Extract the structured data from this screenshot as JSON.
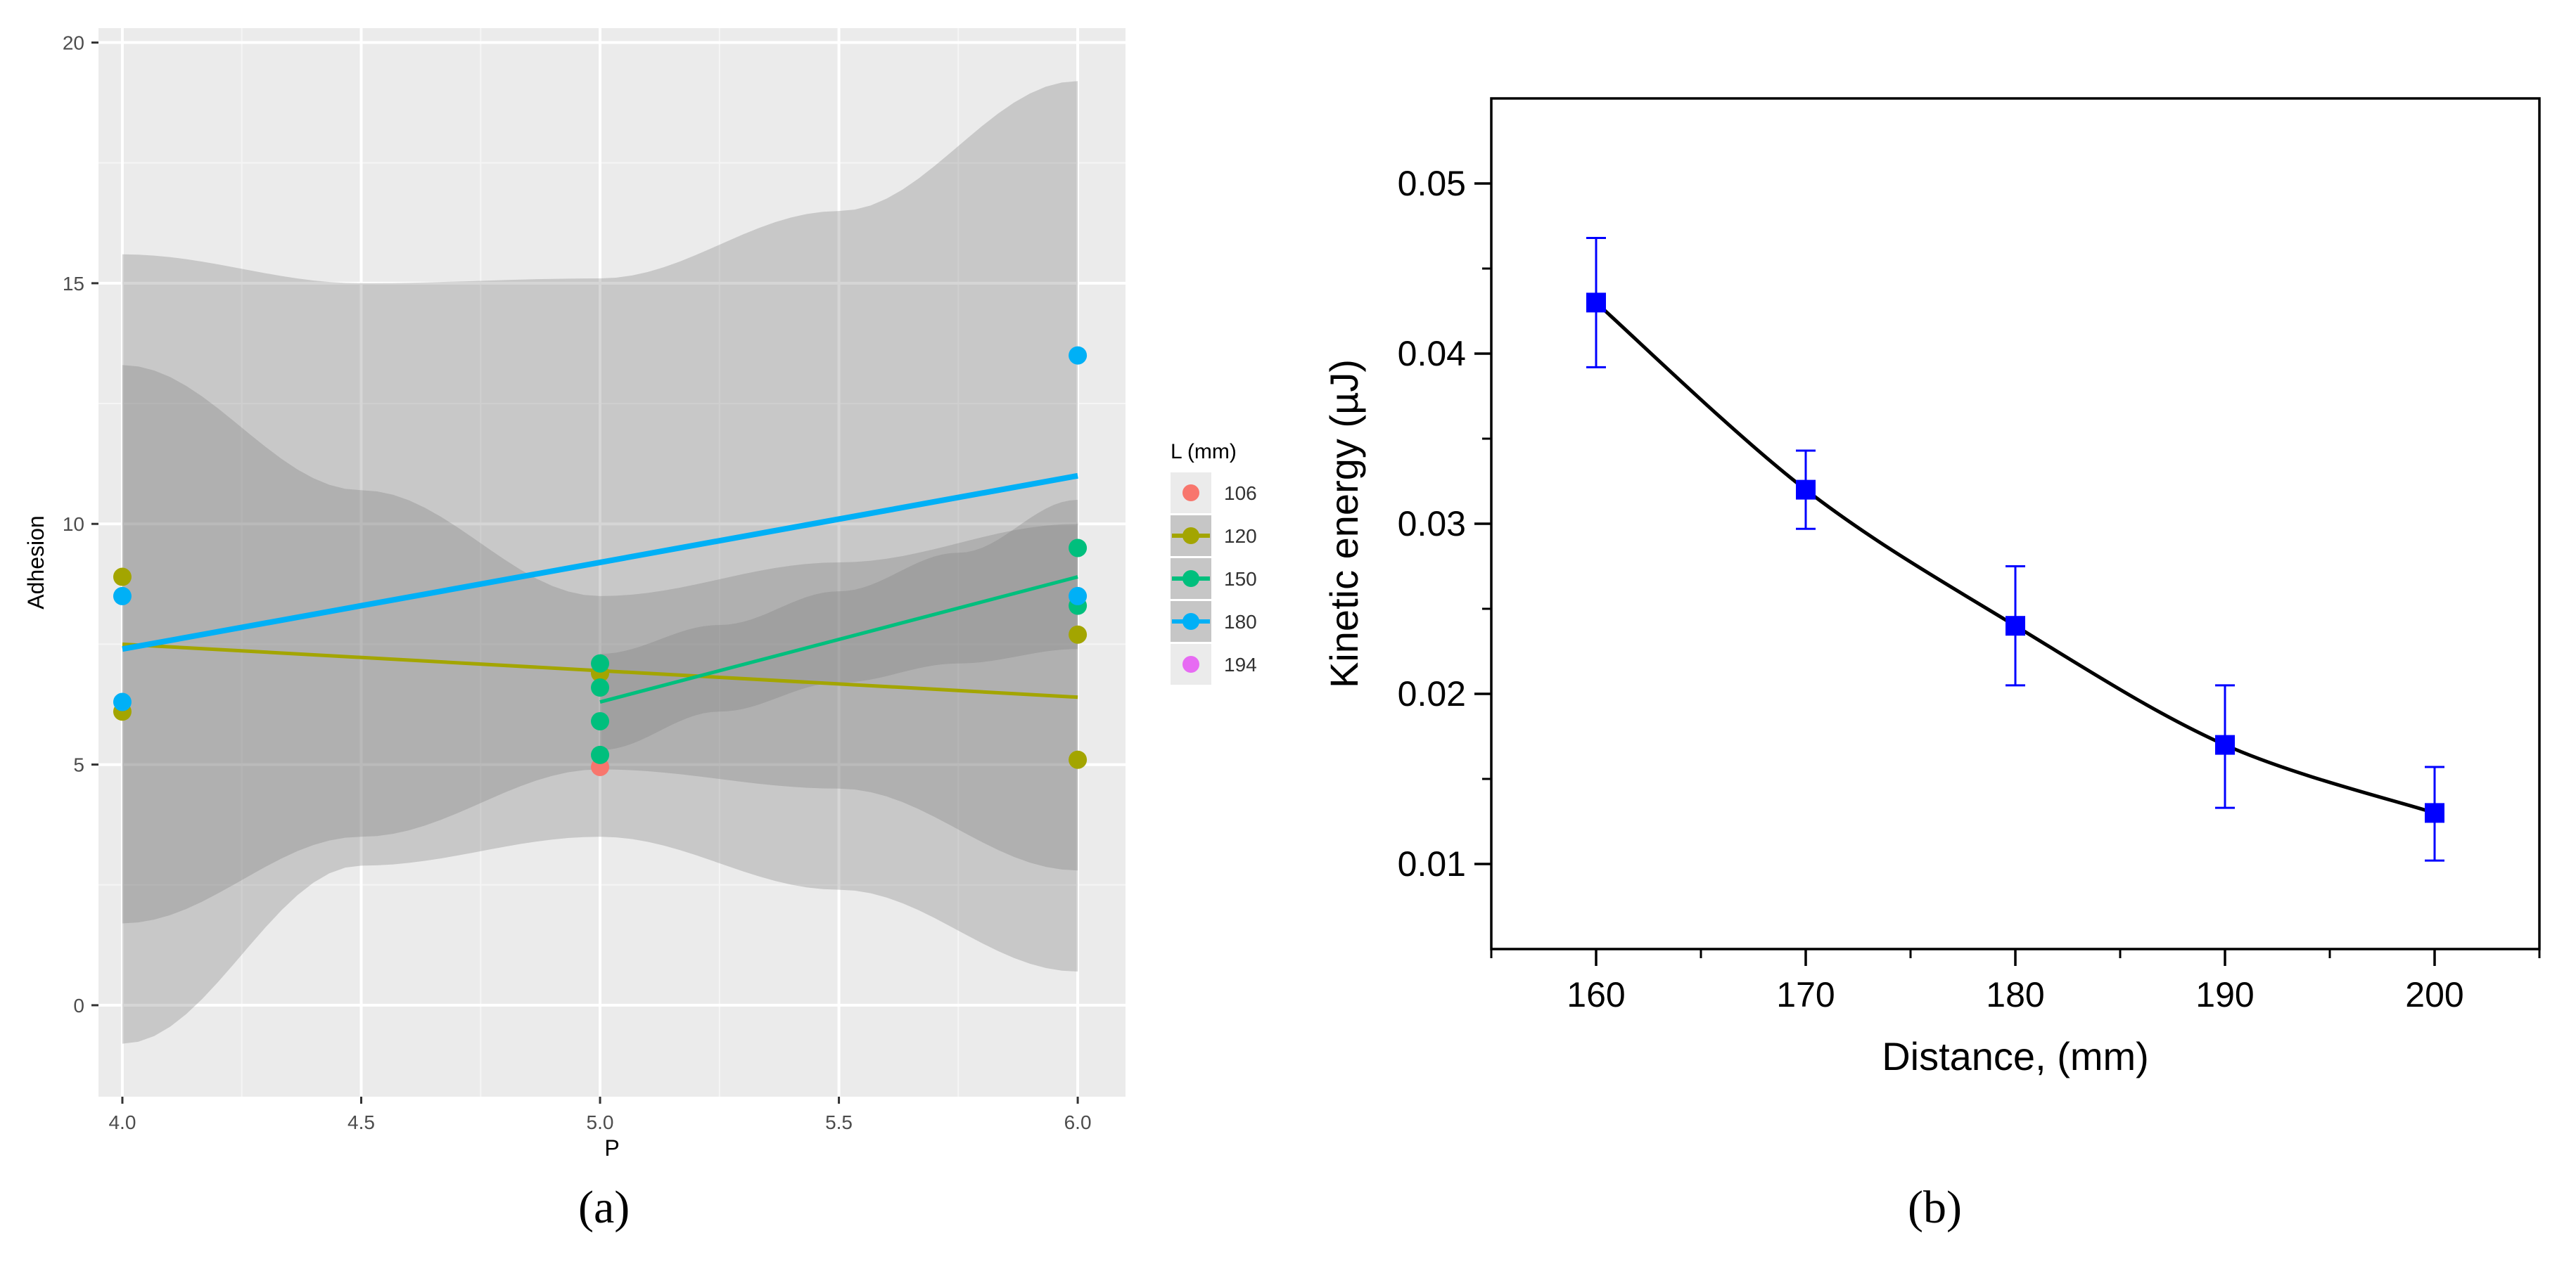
{
  "figure": {
    "panel_a_label": "(a)",
    "panel_b_label": "(b)"
  },
  "chart_data": [
    {
      "type": "scatter",
      "panel": "a",
      "xlabel": "P",
      "ylabel": "Adhesion",
      "xlim": [
        3.95,
        6.1
      ],
      "ylim": [
        -1.9,
        20.3
      ],
      "xticks": [
        4.0,
        4.5,
        5.0,
        5.5,
        6.0
      ],
      "xtick_labels": [
        "4.0",
        "4.5",
        "5.0",
        "5.5",
        "6.0"
      ],
      "yticks": [
        0,
        5,
        10,
        15,
        20
      ],
      "ytick_labels": [
        "0",
        "5",
        "10",
        "15",
        "20"
      ],
      "grid": true,
      "background": "#ebebeb",
      "legend": {
        "title": "L (mm)",
        "placement": "right",
        "entries": [
          "106",
          "120",
          "150",
          "180",
          "194"
        ]
      },
      "series": [
        {
          "name": "106",
          "color": "#f8766d",
          "points": [
            [
              5.0,
              4.95
            ]
          ]
        },
        {
          "name": "120",
          "color": "#a3a500",
          "points": [
            [
              4.0,
              8.9
            ],
            [
              4.0,
              6.1
            ],
            [
              5.0,
              6.9
            ],
            [
              6.0,
              7.7
            ],
            [
              6.0,
              5.1
            ]
          ],
          "fit": [
            [
              4.0,
              7.5
            ],
            [
              6.0,
              6.4
            ]
          ],
          "band": {
            "x": [
              4.0,
              4.5,
              5.0,
              5.5,
              6.0
            ],
            "lower": [
              1.7,
              3.5,
              4.9,
              4.5,
              2.8
            ],
            "upper": [
              13.3,
              10.7,
              8.5,
              9.2,
              10.0
            ]
          }
        },
        {
          "name": "150",
          "color": "#00bf7d",
          "points": [
            [
              5.0,
              7.1
            ],
            [
              5.0,
              6.6
            ],
            [
              5.0,
              5.9
            ],
            [
              5.0,
              5.2
            ],
            [
              6.0,
              9.5
            ],
            [
              6.0,
              8.3
            ]
          ],
          "fit": [
            [
              5.0,
              6.3
            ],
            [
              6.0,
              8.9
            ]
          ],
          "band": {
            "x": [
              5.0,
              5.25,
              5.5,
              5.75,
              6.0
            ],
            "lower": [
              5.3,
              6.1,
              6.7,
              7.1,
              7.4
            ],
            "upper": [
              7.3,
              7.9,
              8.6,
              9.4,
              10.5
            ]
          }
        },
        {
          "name": "180",
          "color": "#00b0f6",
          "points": [
            [
              4.0,
              8.5
            ],
            [
              4.0,
              6.3
            ],
            [
              6.0,
              13.5
            ],
            [
              6.0,
              8.5
            ]
          ],
          "fit": [
            [
              4.0,
              7.4
            ],
            [
              6.0,
              11.0
            ]
          ],
          "band": {
            "x": [
              4.0,
              4.5,
              5.0,
              5.5,
              6.0
            ],
            "lower": [
              -0.8,
              2.9,
              3.5,
              2.4,
              0.7
            ],
            "upper": [
              15.6,
              15.0,
              15.1,
              16.5,
              19.2
            ]
          }
        },
        {
          "name": "194",
          "color": "#e76bf3",
          "points": []
        }
      ]
    },
    {
      "type": "line",
      "panel": "b",
      "xlabel": "Distance, (mm)",
      "ylabel": "Kinetic energy (µJ)",
      "xlim": [
        155,
        205
      ],
      "ylim": [
        0.005,
        0.055
      ],
      "xticks": [
        160,
        170,
        180,
        190,
        200
      ],
      "xtick_labels": [
        "160",
        "170",
        "180",
        "190",
        "200"
      ],
      "yticks": [
        0.01,
        0.02,
        0.03,
        0.04,
        0.05
      ],
      "ytick_labels": [
        "0.01",
        "0.02",
        "0.03",
        "0.04",
        "0.05"
      ],
      "grid": false,
      "series": [
        {
          "x": [
            160,
            170,
            180,
            190,
            200
          ],
          "y": [
            0.043,
            0.032,
            0.024,
            0.017,
            0.013
          ],
          "err_low": [
            0.0392,
            0.0297,
            0.0205,
            0.0133,
            0.0102
          ],
          "err_high": [
            0.0468,
            0.0343,
            0.0275,
            0.0205,
            0.0157
          ],
          "line_color": "#000000",
          "marker_color": "#0000ff"
        }
      ]
    }
  ]
}
